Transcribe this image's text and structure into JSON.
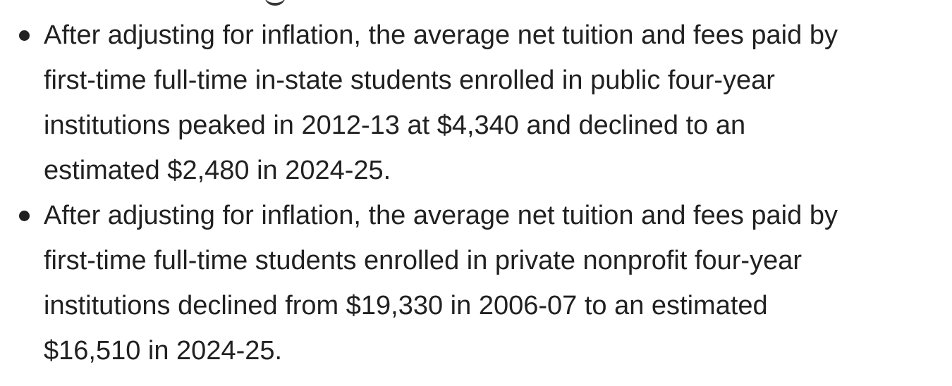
{
  "list": {
    "items": [
      {
        "lines": [
          "After adjusting for inflation, the average net tuition and fees paid by",
          "first-time full-time in-state students enrolled in public four-year",
          "institutions peaked in 2012-13 at $4,340 and declined to an",
          "estimated $2,480 in 2024-25."
        ]
      },
      {
        "lines": [
          "After adjusting for inflation, the average net tuition and fees paid by",
          "first-time full-time students enrolled in private nonprofit four-year",
          "institutions declined from $19,330 in 2006-07 to an estimated",
          "$16,510 in 2024-25."
        ]
      }
    ]
  }
}
